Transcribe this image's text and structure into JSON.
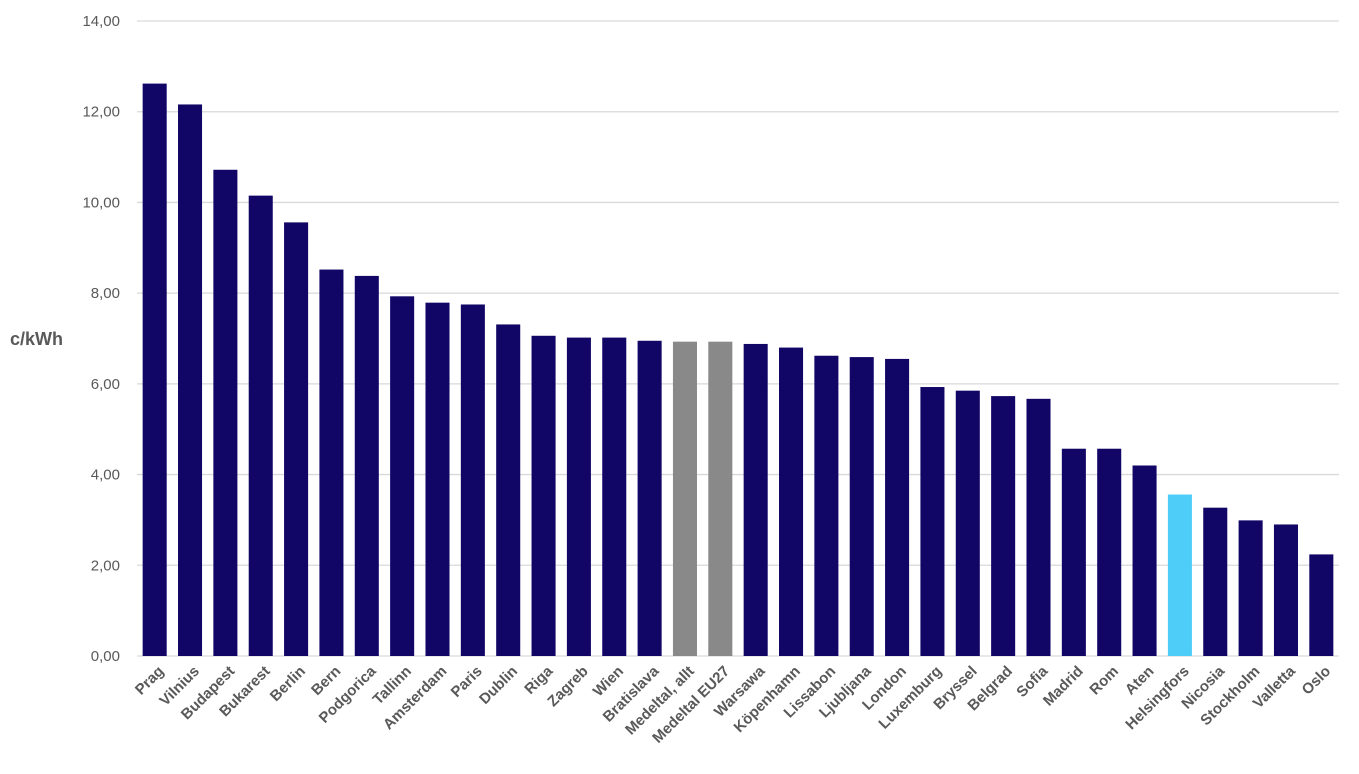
{
  "chart_data": {
    "type": "bar",
    "ylabel": "c/kWh",
    "xlabel": "",
    "ylim": [
      0,
      14
    ],
    "yticks": [
      0,
      2,
      4,
      6,
      8,
      10,
      12,
      14
    ],
    "ytick_labels": [
      "0,00",
      "2,00",
      "4,00",
      "6,00",
      "8,00",
      "10,00",
      "12,00",
      "14,00"
    ],
    "grid": true,
    "categories": [
      "Prag",
      "Vilnius",
      "Budapest",
      "Bukarest",
      "Berlin",
      "Bern",
      "Podgorica",
      "Tallinn",
      "Amsterdam",
      "Paris",
      "Dublin",
      "Riga",
      "Zagreb",
      "Wien",
      "Bratislava",
      "Medeltal, allt",
      "Medeltal EU27",
      "Warsawa",
      "Köpenhamn",
      "Lissabon",
      "Ljubljana",
      "London",
      "Luxemburg",
      "Bryssel",
      "Belgrad",
      "Sofia",
      "Madrid",
      "Rom",
      "Aten",
      "Helsingfors",
      "Nicosia",
      "Stockholm",
      "Valletta",
      "Oslo"
    ],
    "values": [
      12.62,
      12.16,
      10.72,
      10.15,
      9.56,
      8.52,
      8.38,
      7.93,
      7.79,
      7.75,
      7.31,
      7.06,
      7.02,
      7.02,
      6.95,
      6.93,
      6.93,
      6.88,
      6.8,
      6.62,
      6.59,
      6.55,
      5.93,
      5.85,
      5.73,
      5.67,
      4.57,
      4.57,
      4.2,
      3.56,
      3.27,
      2.99,
      2.9,
      2.24
    ],
    "colors": {
      "default": "#110566",
      "average": "#898989",
      "highlight": "#4dcdf8"
    },
    "bar_color_keys": [
      "default",
      "default",
      "default",
      "default",
      "default",
      "default",
      "default",
      "default",
      "default",
      "default",
      "default",
      "default",
      "default",
      "default",
      "default",
      "average",
      "average",
      "default",
      "default",
      "default",
      "default",
      "default",
      "default",
      "default",
      "default",
      "default",
      "default",
      "default",
      "default",
      "highlight",
      "default",
      "default",
      "default",
      "default"
    ]
  }
}
